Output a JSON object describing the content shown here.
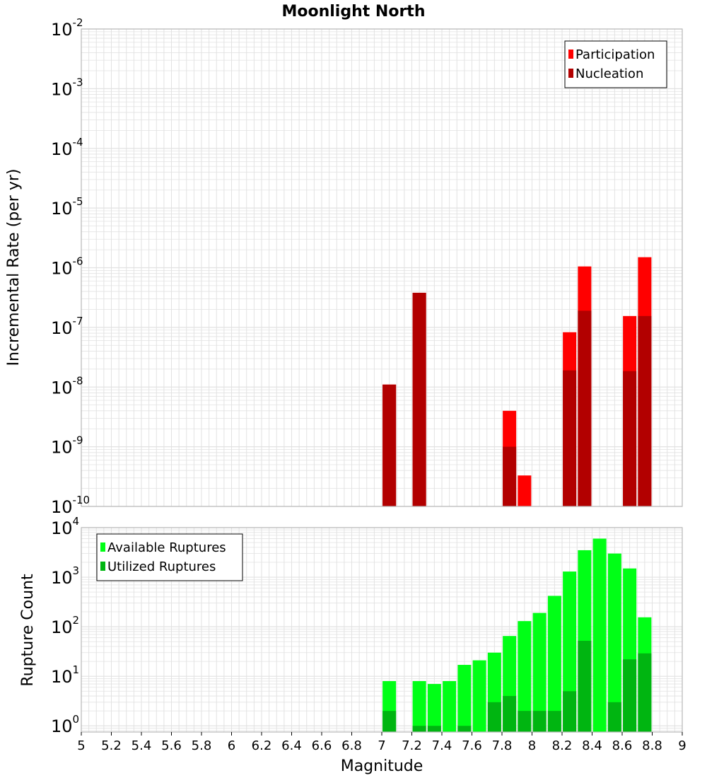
{
  "title": "Moonlight North",
  "colors": {
    "participation": "#ff0000",
    "nucleation": "#b20000",
    "available": "#00ff16",
    "utilized": "#00b511",
    "grid": "#e2e2e2",
    "frame": "#b8b8b8"
  },
  "chart_data": [
    {
      "type": "bar",
      "scale": "log",
      "ylabel": "Incremental Rate (per yr)",
      "xlabel": "",
      "ylim": [
        1e-10,
        0.01
      ],
      "y_ticks": [
        {
          "base": "10",
          "exp": "-10"
        },
        {
          "base": "10",
          "exp": "-9"
        },
        {
          "base": "10",
          "exp": "-8"
        },
        {
          "base": "10",
          "exp": "-7"
        },
        {
          "base": "10",
          "exp": "-6"
        },
        {
          "base": "10",
          "exp": "-5"
        },
        {
          "base": "10",
          "exp": "-4"
        },
        {
          "base": "10",
          "exp": "-3"
        },
        {
          "base": "10",
          "exp": "-2"
        }
      ],
      "legend_position": "top-right",
      "series": [
        {
          "name": "Participation",
          "x": [
            7.05,
            7.25,
            7.85,
            7.95,
            8.25,
            8.35,
            8.65,
            8.75
          ],
          "values": [
            1.1e-08,
            3.8e-07,
            4e-09,
            3.3e-10,
            8.3e-08,
            1.05e-06,
            1.55e-07,
            1.5e-06
          ]
        },
        {
          "name": "Nucleation",
          "x": [
            7.05,
            7.25,
            7.85,
            8.25,
            8.35,
            8.65,
            8.75
          ],
          "values": [
            1.1e-08,
            3.8e-07,
            1e-09,
            1.9e-08,
            1.9e-07,
            1.85e-08,
            1.55e-07
          ]
        }
      ]
    },
    {
      "type": "bar",
      "scale": "log",
      "ylabel": "Rupture Count",
      "xlabel": "Magnitude",
      "xlim": [
        5,
        9
      ],
      "ylim": [
        0.75,
        10000
      ],
      "x_ticks": [
        "5",
        "5.2",
        "5.4",
        "5.6",
        "5.8",
        "6",
        "6.2",
        "6.4",
        "6.6",
        "6.8",
        "7",
        "7.2",
        "7.4",
        "7.6",
        "7.8",
        "8",
        "8.2",
        "8.4",
        "8.6",
        "8.8",
        "9"
      ],
      "y_ticks": [
        {
          "base": "10",
          "exp": "0"
        },
        {
          "base": "10",
          "exp": "1"
        },
        {
          "base": "10",
          "exp": "2"
        },
        {
          "base": "10",
          "exp": "3"
        },
        {
          "base": "10",
          "exp": "4"
        }
      ],
      "legend_position": "top-left",
      "series": [
        {
          "name": "Available Ruptures",
          "x": [
            7.05,
            7.25,
            7.35,
            7.45,
            7.55,
            7.65,
            7.75,
            7.85,
            7.95,
            8.05,
            8.15,
            8.25,
            8.35,
            8.45,
            8.55,
            8.65,
            8.75
          ],
          "values": [
            8,
            8,
            7,
            8,
            17,
            21,
            30,
            65,
            130,
            190,
            420,
            1300,
            3500,
            6000,
            3000,
            1500,
            155
          ]
        },
        {
          "name": "Utilized Ruptures",
          "x": [
            7.05,
            7.25,
            7.35,
            7.55,
            7.75,
            7.85,
            7.95,
            8.05,
            8.15,
            8.25,
            8.35,
            8.55,
            8.65,
            8.75
          ],
          "values": [
            2,
            1,
            1,
            1,
            3,
            4,
            2,
            2,
            2,
            5,
            52,
            3,
            22,
            29
          ]
        }
      ]
    }
  ]
}
